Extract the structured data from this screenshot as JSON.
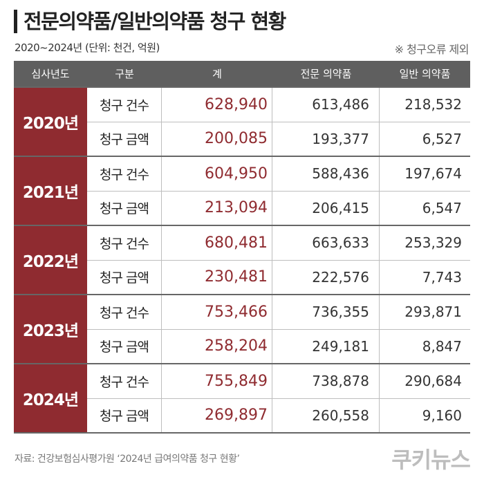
{
  "title": "전문의약품/일반의약품 청구 현황",
  "subtitle": "2020~2024년 (단위: 천건, 억원)",
  "note": "※ 청구오류 제외",
  "headers": {
    "year": "심사년도",
    "type": "구분",
    "total": "계",
    "pro": "전문 의약품",
    "gen": "일반 의약품"
  },
  "groups": [
    {
      "year": "2020년",
      "rows": [
        {
          "type": "청구 건수",
          "total": "628,940",
          "pro": "613,486",
          "gen": "218,532"
        },
        {
          "type": "청구 금액",
          "total": "200,085",
          "pro": "193,377",
          "gen": "6,527"
        }
      ]
    },
    {
      "year": "2021년",
      "rows": [
        {
          "type": "청구 건수",
          "total": "604,950",
          "pro": "588,436",
          "gen": "197,674"
        },
        {
          "type": "청구 금액",
          "total": "213,094",
          "pro": "206,415",
          "gen": "6,547"
        }
      ]
    },
    {
      "year": "2022년",
      "rows": [
        {
          "type": "청구 건수",
          "total": "680,481",
          "pro": "663,633",
          "gen": "253,329"
        },
        {
          "type": "청구 금액",
          "total": "230,481",
          "pro": "222,576",
          "gen": "7,743"
        }
      ]
    },
    {
      "year": "2023년",
      "rows": [
        {
          "type": "청구 건수",
          "total": "753,466",
          "pro": "736,355",
          "gen": "293,871"
        },
        {
          "type": "청구 금액",
          "total": "258,204",
          "pro": "249,181",
          "gen": "8,847"
        }
      ]
    },
    {
      "year": "2024년",
      "rows": [
        {
          "type": "청구 건수",
          "total": "755,849",
          "pro": "738,878",
          "gen": "290,684"
        },
        {
          "type": "청구 금액",
          "total": "269,897",
          "pro": "260,558",
          "gen": "9,160"
        }
      ]
    }
  ],
  "source": "자료: 건강보험심사평가원 ‘2024년 급여의약품 청구 현황’",
  "logo": "쿠키뉴스",
  "colors": {
    "accent": "#8f2b30",
    "header_bg": "#5f5f5f"
  }
}
